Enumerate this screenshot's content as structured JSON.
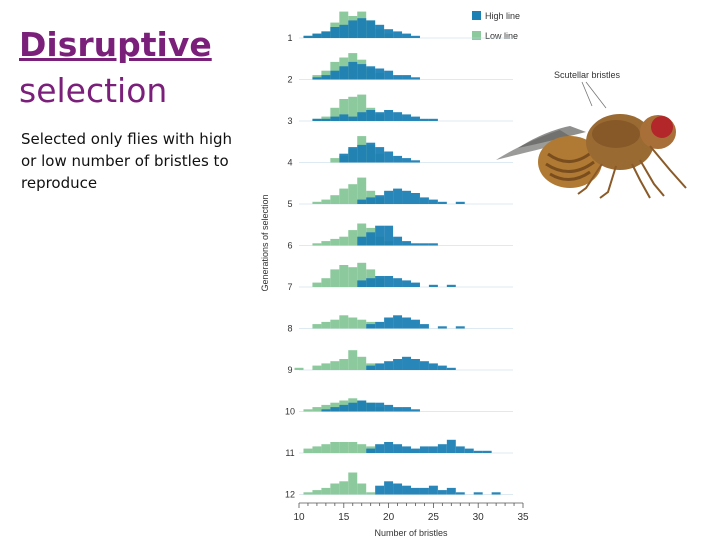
{
  "slide": {
    "title_line1": "Disruptive",
    "title_line2": "selection",
    "description": "Selected only flies with high or low number of bristles to reproduce"
  },
  "figure_labels": {
    "fly_callout": "Scutellar bristles"
  },
  "colors": {
    "title": "#7a1f7a",
    "high_line": "#1c80b4",
    "low_line": "#8cc99c"
  },
  "chart_data": {
    "type": "bar",
    "subtype": "stacked-histogram-rows",
    "xlabel": "Number of bristles",
    "ylabel": "Generations of selection",
    "xlim": [
      10,
      35
    ],
    "xticks": [
      10,
      15,
      20,
      25,
      30,
      35
    ],
    "legend_position": "top-right",
    "series": [
      {
        "name": "High line",
        "color": "#1c80b4"
      },
      {
        "name": "Low line",
        "color": "#8cc99c"
      }
    ],
    "generations": [
      {
        "label": "1",
        "low": [
          [
            11,
            1
          ],
          [
            12,
            2
          ],
          [
            13,
            3
          ],
          [
            14,
            7
          ],
          [
            15,
            12
          ],
          [
            16,
            10
          ],
          [
            17,
            12
          ],
          [
            18,
            8
          ],
          [
            19,
            4
          ],
          [
            20,
            2
          ]
        ],
        "high": [
          [
            11,
            1
          ],
          [
            12,
            2
          ],
          [
            13,
            3
          ],
          [
            14,
            5
          ],
          [
            15,
            6
          ],
          [
            16,
            8
          ],
          [
            17,
            9
          ],
          [
            18,
            8
          ],
          [
            19,
            6
          ],
          [
            20,
            4
          ],
          [
            21,
            3
          ],
          [
            22,
            2
          ],
          [
            23,
            1
          ]
        ]
      },
      {
        "label": "2",
        "low": [
          [
            12,
            2
          ],
          [
            13,
            4
          ],
          [
            14,
            8
          ],
          [
            15,
            10
          ],
          [
            16,
            12
          ],
          [
            17,
            9
          ],
          [
            18,
            5
          ],
          [
            19,
            3
          ]
        ],
        "high": [
          [
            12,
            1
          ],
          [
            13,
            2
          ],
          [
            14,
            4
          ],
          [
            15,
            6
          ],
          [
            16,
            8
          ],
          [
            17,
            7
          ],
          [
            18,
            6
          ],
          [
            19,
            5
          ],
          [
            20,
            4
          ],
          [
            21,
            2
          ],
          [
            22,
            2
          ],
          [
            23,
            1
          ]
        ]
      },
      {
        "label": "3",
        "low": [
          [
            12,
            1
          ],
          [
            13,
            2
          ],
          [
            14,
            6
          ],
          [
            15,
            10
          ],
          [
            16,
            11
          ],
          [
            17,
            12
          ],
          [
            18,
            6
          ],
          [
            19,
            3
          ]
        ],
        "high": [
          [
            12,
            1
          ],
          [
            13,
            1
          ],
          [
            14,
            2
          ],
          [
            15,
            3
          ],
          [
            16,
            2
          ],
          [
            17,
            4
          ],
          [
            18,
            5
          ],
          [
            19,
            4
          ],
          [
            20,
            5
          ],
          [
            21,
            4
          ],
          [
            22,
            3
          ],
          [
            23,
            2
          ],
          [
            24,
            1
          ],
          [
            25,
            1
          ]
        ]
      },
      {
        "label": "4",
        "low": [
          [
            14,
            2
          ],
          [
            15,
            3
          ],
          [
            16,
            6
          ],
          [
            17,
            12
          ],
          [
            18,
            8
          ],
          [
            19,
            4
          ]
        ],
        "high": [
          [
            15,
            4
          ],
          [
            16,
            7
          ],
          [
            17,
            8
          ],
          [
            18,
            9
          ],
          [
            19,
            7
          ],
          [
            20,
            5
          ],
          [
            21,
            3
          ],
          [
            22,
            2
          ],
          [
            23,
            1
          ]
        ]
      },
      {
        "label": "5",
        "low": [
          [
            12,
            1
          ],
          [
            13,
            2
          ],
          [
            14,
            4
          ],
          [
            15,
            7
          ],
          [
            16,
            9
          ],
          [
            17,
            12
          ],
          [
            18,
            6
          ],
          [
            19,
            3
          ]
        ],
        "high": [
          [
            17,
            2
          ],
          [
            18,
            3
          ],
          [
            19,
            4
          ],
          [
            20,
            6
          ],
          [
            21,
            7
          ],
          [
            22,
            6
          ],
          [
            23,
            5
          ],
          [
            24,
            3
          ],
          [
            25,
            2
          ],
          [
            26,
            1
          ],
          [
            28,
            1
          ]
        ]
      },
      {
        "label": "6",
        "low": [
          [
            12,
            1
          ],
          [
            13,
            2
          ],
          [
            14,
            3
          ],
          [
            15,
            4
          ],
          [
            16,
            7
          ],
          [
            17,
            10
          ],
          [
            18,
            8
          ],
          [
            19,
            4
          ],
          [
            20,
            2
          ]
        ],
        "high": [
          [
            17,
            4
          ],
          [
            18,
            6
          ],
          [
            19,
            9
          ],
          [
            20,
            9
          ],
          [
            21,
            4
          ],
          [
            22,
            2
          ],
          [
            23,
            1
          ],
          [
            24,
            1
          ],
          [
            25,
            1
          ]
        ]
      },
      {
        "label": "7",
        "low": [
          [
            12,
            2
          ],
          [
            13,
            4
          ],
          [
            14,
            8
          ],
          [
            15,
            10
          ],
          [
            16,
            9
          ],
          [
            17,
            11
          ],
          [
            18,
            8
          ],
          [
            19,
            4
          ]
        ],
        "high": [
          [
            17,
            3
          ],
          [
            18,
            4
          ],
          [
            19,
            5
          ],
          [
            20,
            5
          ],
          [
            21,
            4
          ],
          [
            22,
            3
          ],
          [
            23,
            2
          ],
          [
            25,
            1
          ],
          [
            27,
            1
          ]
        ]
      },
      {
        "label": "8",
        "low": [
          [
            12,
            2
          ],
          [
            13,
            3
          ],
          [
            14,
            4
          ],
          [
            15,
            6
          ],
          [
            16,
            5
          ],
          [
            17,
            4
          ],
          [
            18,
            3
          ]
        ],
        "high": [
          [
            18,
            2
          ],
          [
            19,
            3
          ],
          [
            20,
            5
          ],
          [
            21,
            6
          ],
          [
            22,
            5
          ],
          [
            23,
            4
          ],
          [
            24,
            2
          ],
          [
            26,
            1
          ],
          [
            28,
            1
          ]
        ]
      },
      {
        "label": "9",
        "low": [
          [
            10,
            1
          ],
          [
            12,
            2
          ],
          [
            13,
            3
          ],
          [
            14,
            4
          ],
          [
            15,
            5
          ],
          [
            16,
            9
          ],
          [
            17,
            6
          ],
          [
            18,
            3
          ]
        ],
        "high": [
          [
            18,
            2
          ],
          [
            19,
            3
          ],
          [
            20,
            4
          ],
          [
            21,
            5
          ],
          [
            22,
            6
          ],
          [
            23,
            5
          ],
          [
            24,
            4
          ],
          [
            25,
            3
          ],
          [
            26,
            2
          ],
          [
            27,
            1
          ]
        ]
      },
      {
        "label": "10",
        "low": [
          [
            11,
            1
          ],
          [
            12,
            2
          ],
          [
            13,
            3
          ],
          [
            14,
            4
          ],
          [
            15,
            5
          ],
          [
            16,
            6
          ],
          [
            17,
            5
          ],
          [
            18,
            4
          ],
          [
            19,
            2
          ]
        ],
        "high": [
          [
            13,
            1
          ],
          [
            14,
            2
          ],
          [
            15,
            3
          ],
          [
            16,
            4
          ],
          [
            17,
            5
          ],
          [
            18,
            4
          ],
          [
            19,
            4
          ],
          [
            20,
            3
          ],
          [
            21,
            2
          ],
          [
            22,
            2
          ],
          [
            23,
            1
          ]
        ]
      },
      {
        "label": "11",
        "low": [
          [
            11,
            2
          ],
          [
            12,
            3
          ],
          [
            13,
            4
          ],
          [
            14,
            5
          ],
          [
            15,
            5
          ],
          [
            16,
            5
          ],
          [
            17,
            4
          ],
          [
            18,
            3
          ]
        ],
        "high": [
          [
            18,
            2
          ],
          [
            19,
            4
          ],
          [
            20,
            5
          ],
          [
            21,
            4
          ],
          [
            22,
            3
          ],
          [
            23,
            2
          ],
          [
            24,
            3
          ],
          [
            25,
            3
          ],
          [
            26,
            4
          ],
          [
            27,
            6
          ],
          [
            28,
            3
          ],
          [
            29,
            2
          ],
          [
            30,
            1
          ],
          [
            31,
            1
          ]
        ]
      },
      {
        "label": "12",
        "low": [
          [
            11,
            1
          ],
          [
            12,
            2
          ],
          [
            13,
            3
          ],
          [
            14,
            5
          ],
          [
            15,
            6
          ],
          [
            16,
            10
          ],
          [
            17,
            5
          ],
          [
            18,
            1
          ]
        ],
        "high": [
          [
            19,
            4
          ],
          [
            20,
            6
          ],
          [
            21,
            5
          ],
          [
            22,
            4
          ],
          [
            23,
            3
          ],
          [
            24,
            3
          ],
          [
            25,
            4
          ],
          [
            26,
            2
          ],
          [
            27,
            3
          ],
          [
            28,
            1
          ],
          [
            30,
            1
          ],
          [
            32,
            1
          ]
        ]
      }
    ]
  }
}
